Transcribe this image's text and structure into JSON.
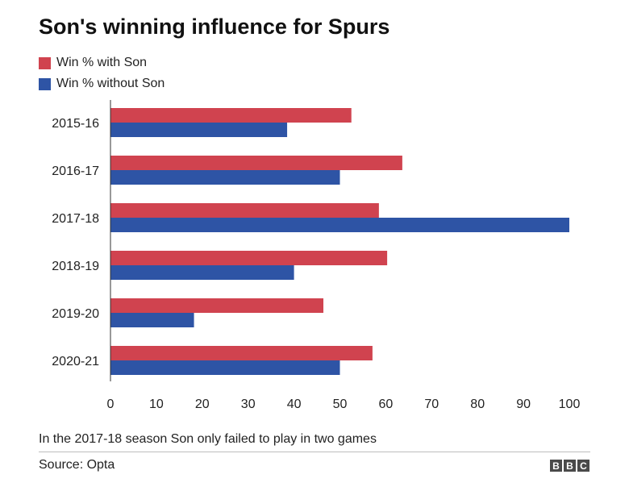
{
  "title": "Son's winning influence for Spurs",
  "note": "In the 2017-18 season Son only failed to play in two games",
  "source": "Source: Opta",
  "logo": {
    "letters": [
      "B",
      "B",
      "C"
    ]
  },
  "colors": {
    "with": "#d0434f",
    "without": "#2e54a5"
  },
  "chart_data": {
    "type": "bar",
    "orientation": "horizontal",
    "categories": [
      "2015-16",
      "2016-17",
      "2017-18",
      "2018-19",
      "2019-20",
      "2020-21"
    ],
    "series": [
      {
        "name": "Win % with Son",
        "values": [
          52.5,
          63.6,
          58.5,
          60.3,
          46.4,
          57.1
        ]
      },
      {
        "name": "Win % without Son",
        "values": [
          38.5,
          50.0,
          100.0,
          40.0,
          18.2,
          50.0
        ]
      }
    ],
    "xlim": [
      0,
      100
    ],
    "xticks": [
      0,
      10,
      20,
      30,
      40,
      50,
      60,
      70,
      80,
      90,
      100
    ],
    "grid": false,
    "legend": "top-left"
  }
}
